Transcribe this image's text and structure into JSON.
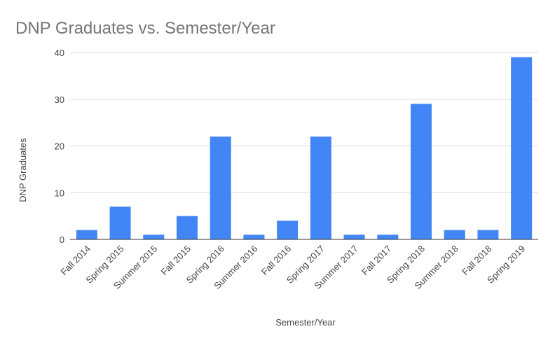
{
  "chart_data": {
    "type": "bar",
    "title": "DNP Graduates vs. Semester/Year",
    "x_label": "Semester/Year",
    "y_label": "DNP Graduates",
    "categories": [
      "Fall 2014",
      "Spring 2015",
      "Summer 2015",
      "Fall 2015",
      "Spring 2016",
      "Summer 2016",
      "Fall 2016",
      "Spring 2017",
      "Summer 2017",
      "Fall 2017",
      "Spring 2018",
      "Summer 2018",
      "Fall 2018",
      "Spring 2019"
    ],
    "values": [
      2,
      7,
      1,
      5,
      22,
      1,
      4,
      22,
      1,
      1,
      29,
      2,
      2,
      39
    ],
    "color": "#4285f4",
    "ylim": [
      0,
      40
    ],
    "yticks": [
      0,
      10,
      20,
      30,
      40
    ],
    "grid": true
  }
}
